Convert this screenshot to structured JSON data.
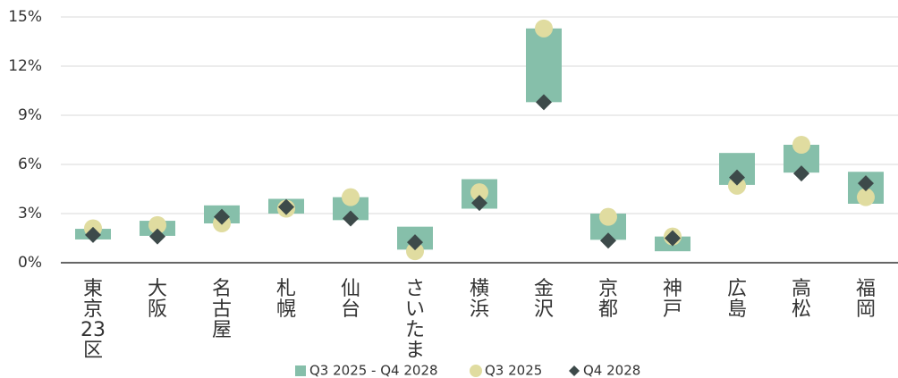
{
  "chart_data": {
    "type": "range",
    "categories": [
      "東京23区",
      "大阪",
      "名古屋",
      "札幌",
      "仙台",
      "さいたま",
      "横浜",
      "金沢",
      "京都",
      "神戸",
      "広島",
      "高松",
      "福岡"
    ],
    "series": [
      {
        "name": "Q3 2025 - Q4 2028",
        "color": "#86bfaa",
        "marker": "bar",
        "low": [
          1.42,
          1.64,
          2.4,
          3.0,
          2.6,
          0.8,
          3.3,
          9.8,
          1.4,
          0.7,
          4.75,
          5.5,
          3.6
        ],
        "high": [
          2.07,
          2.56,
          3.5,
          3.9,
          4.0,
          2.2,
          5.1,
          14.3,
          3.0,
          1.6,
          6.7,
          7.2,
          5.55
        ]
      },
      {
        "name": "Q3 2025",
        "color": "#e0dca0",
        "marker": "circle",
        "values": [
          2.1,
          2.3,
          2.4,
          3.3,
          4.0,
          0.7,
          4.3,
          14.3,
          2.8,
          1.6,
          4.7,
          7.2,
          4.0
        ]
      },
      {
        "name": "Q4 2028",
        "color": "#3d4a4a",
        "marker": "diamond",
        "values": [
          1.7,
          1.6,
          2.8,
          3.4,
          2.7,
          1.25,
          3.65,
          9.8,
          1.35,
          1.5,
          5.2,
          5.45,
          4.85
        ]
      }
    ],
    "ylim": [
      0,
      15
    ],
    "yticks": [
      {
        "value": 0,
        "label": "0%"
      },
      {
        "value": 3,
        "label": "3%"
      },
      {
        "value": 6,
        "label": "6%"
      },
      {
        "value": 9,
        "label": "9%"
      },
      {
        "value": 12,
        "label": "12%"
      },
      {
        "value": 15,
        "label": "15%"
      }
    ],
    "grid": true
  }
}
